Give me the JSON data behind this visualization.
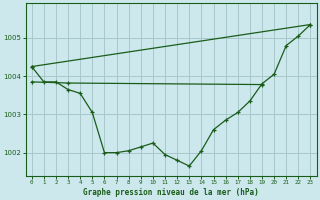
{
  "background_color": "#cce8ec",
  "grid_color": "#a8c8cc",
  "line_color": "#1a5c1a",
  "title": "Graphe pression niveau de la mer (hPa)",
  "xlim": [
    -0.5,
    23.5
  ],
  "ylim": [
    1001.4,
    1005.9
  ],
  "yticks": [
    1002,
    1003,
    1004,
    1005
  ],
  "xticks": [
    0,
    1,
    2,
    3,
    4,
    5,
    6,
    7,
    8,
    9,
    10,
    11,
    12,
    13,
    14,
    15,
    16,
    17,
    18,
    19,
    20,
    21,
    22,
    23
  ],
  "line1_x": [
    0,
    1,
    2,
    3,
    4,
    5,
    6,
    7,
    8,
    9,
    10,
    11,
    12,
    13,
    14,
    15,
    16,
    17,
    18,
    19,
    20,
    21,
    22,
    23
  ],
  "line1_y": [
    1004.25,
    1003.85,
    1003.85,
    1003.65,
    1003.55,
    1003.05,
    1002.0,
    1002.0,
    1002.05,
    1002.15,
    1002.25,
    1001.95,
    1001.8,
    1001.65,
    1002.05,
    1002.6,
    1002.85,
    1003.05,
    1003.35,
    1003.8,
    1004.05,
    1004.8,
    1005.05,
    1005.35
  ],
  "line2_x": [
    0,
    3,
    19
  ],
  "line2_y": [
    1003.85,
    1003.82,
    1003.78
  ],
  "line3_x": [
    0,
    23
  ],
  "line3_y": [
    1004.25,
    1005.35
  ]
}
